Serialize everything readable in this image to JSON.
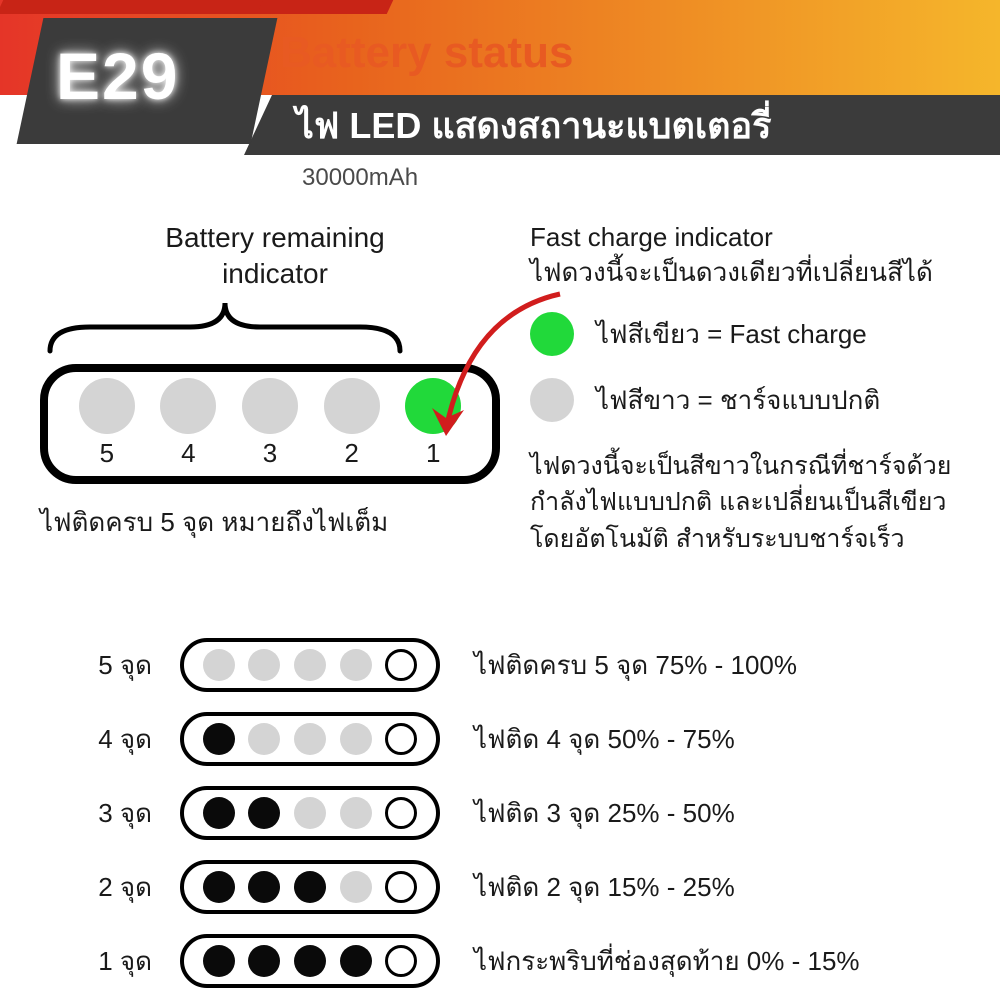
{
  "colors": {
    "grad_c1": "#e53528",
    "grad_c2": "#e8631d",
    "grad_c3": "#f5b62b",
    "red_bar": "#c82416",
    "title_text": "#e85a22",
    "subtitle_bg": "#3b3b3b",
    "subtitle_text": "#ffffff",
    "badge_bg": "#3b3b3b",
    "badge_text": "#ffffff",
    "capacity_text": "#4a4a4a",
    "body_text": "#1a1a1a",
    "led_off": "#d4d4d4",
    "led_green": "#21d93a",
    "led_dark": "#0a0a0a",
    "pill_border": "#000000",
    "arrow": "#d11d1d",
    "dot_outline": "#000000"
  },
  "header": {
    "title": "Battery status",
    "subtitle": "ไฟ LED แสดงสถานะแบตเตอรี่",
    "badge": "E29",
    "capacity": "30000mAh"
  },
  "remaining": {
    "label_line1": "Battery remaining",
    "label_line2": "indicator",
    "leds": [
      {
        "num": "5",
        "on": false
      },
      {
        "num": "4",
        "on": false
      },
      {
        "num": "3",
        "on": false
      },
      {
        "num": "2",
        "on": false
      },
      {
        "num": "1",
        "on": true
      }
    ],
    "full_note": "ไฟติดครบ 5 จุด หมายถึงไฟเต็ม"
  },
  "fast": {
    "title_line1": "Fast charge indicator",
    "title_line2": "ไฟดวงนี้จะเป็นดวงเดียวที่เปลี่ยนสีได้",
    "legend": [
      {
        "color_key": "led_green",
        "text": "ไฟสีเขียว = Fast charge"
      },
      {
        "color_key": "led_off",
        "text": "ไฟสีขาว = ชาร์จแบบปกติ"
      }
    ],
    "desc": "ไฟดวงนี้จะเป็นสีขาวในกรณีที่ชาร์จด้วยกำลังไฟแบบปกติ และเปลี่ยนเป็นสีเขียวโดยอัตโนมัติ สำหรับระบบชาร์จเร็ว"
  },
  "table": {
    "rows": [
      {
        "label": "5 จุด",
        "dots": [
          "off",
          "off",
          "off",
          "off",
          "outline"
        ],
        "desc": "ไฟติดครบ 5 จุด 75% - 100%"
      },
      {
        "label": "4 จุด",
        "dots": [
          "dark",
          "off",
          "off",
          "off",
          "outline"
        ],
        "desc": "ไฟติด 4 จุด 50% - 75%"
      },
      {
        "label": "3 จุด",
        "dots": [
          "dark",
          "dark",
          "off",
          "off",
          "outline"
        ],
        "desc": "ไฟติด 3 จุด 25% - 50%"
      },
      {
        "label": "2 จุด",
        "dots": [
          "dark",
          "dark",
          "dark",
          "off",
          "outline"
        ],
        "desc": "ไฟติด 2 จุด 15% - 25%"
      },
      {
        "label": "1 จุด",
        "dots": [
          "dark",
          "dark",
          "dark",
          "dark",
          "outline"
        ],
        "desc": "ไฟกระพริบที่ช่องสุดท้าย 0% - 15%"
      }
    ]
  },
  "style": {
    "pill_border_width_big": 8,
    "pill_border_width_small": 4,
    "led_big_size": 56,
    "led_small_size": 32,
    "outline_width": 3
  }
}
